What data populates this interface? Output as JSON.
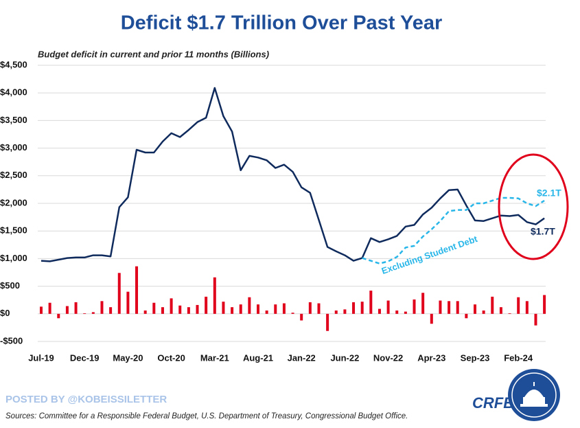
{
  "chart_data": {
    "type": "line",
    "title": "Deficit $1.7 Trillion Over Past Year",
    "subtitle": "Budget deficit in current and prior 11 months (Billions)",
    "categories": [
      "Jul-19",
      null,
      null,
      null,
      null,
      "Dec-19",
      null,
      null,
      null,
      null,
      "May-20",
      null,
      null,
      null,
      null,
      "Oct-20",
      null,
      null,
      null,
      null,
      "Mar-21",
      null,
      null,
      null,
      null,
      "Aug-21",
      null,
      null,
      null,
      null,
      "Jan-22",
      null,
      null,
      null,
      null,
      "Jun-22",
      null,
      null,
      null,
      null,
      "Nov-22",
      null,
      null,
      null,
      null,
      "Apr-23",
      null,
      null,
      null,
      null,
      "Sep-23",
      null,
      null,
      null,
      null,
      "Feb-24",
      null,
      null,
      null
    ],
    "series": [
      {
        "type": "bar",
        "color": "#e0001b",
        "values": [
          130,
          200,
          -80,
          140,
          210,
          10,
          30,
          230,
          120,
          740,
          400,
          860,
          60,
          200,
          120,
          280,
          150,
          120,
          160,
          310,
          660,
          220,
          120,
          170,
          300,
          170,
          60,
          170,
          190,
          20,
          -120,
          210,
          190,
          -310,
          60,
          80,
          210,
          220,
          420,
          90,
          240,
          60,
          40,
          260,
          380,
          -180,
          240,
          230,
          230,
          -80,
          170,
          60,
          310,
          120,
          10,
          300,
          230,
          -210,
          340
        ]
      },
      {
        "type": "line",
        "color": "#0f2a5c",
        "values": [
          960,
          950,
          980,
          1010,
          1020,
          1020,
          1060,
          1060,
          1040,
          1930,
          2110,
          2970,
          2920,
          2920,
          3120,
          3270,
          3200,
          3330,
          3470,
          3550,
          4090,
          3580,
          3300,
          2600,
          2860,
          2830,
          2780,
          2640,
          2700,
          2570,
          2290,
          2190,
          1700,
          1210,
          1130,
          1060,
          960,
          1010,
          1370,
          1300,
          1350,
          1410,
          1580,
          1610,
          1800,
          1920,
          2090,
          2240,
          2250,
          1960,
          1690,
          1680,
          1730,
          1780,
          1770,
          1790,
          1660,
          1620,
          1730
        ]
      },
      {
        "type": "line",
        "name": "Excluding Student Debt",
        "color": "#29b6e8",
        "dash": true,
        "values": [
          null,
          null,
          null,
          null,
          null,
          null,
          null,
          null,
          null,
          null,
          null,
          null,
          null,
          null,
          null,
          null,
          null,
          null,
          null,
          null,
          null,
          null,
          null,
          null,
          null,
          null,
          null,
          null,
          null,
          null,
          null,
          null,
          null,
          null,
          null,
          null,
          null,
          1010,
          960,
          910,
          950,
          1030,
          1200,
          1230,
          1400,
          1530,
          1680,
          1860,
          1880,
          1880,
          2000,
          2000,
          2050,
          2100,
          2100,
          2090,
          2000,
          1950,
          2050
        ]
      }
    ],
    "ylim": [
      -500,
      4500
    ],
    "yticks": [
      {
        "value": -500,
        "label": "-$500"
      },
      {
        "value": 0,
        "label": "$0"
      },
      {
        "value": 500,
        "label": "$500"
      },
      {
        "value": 1000,
        "label": "$1,000"
      },
      {
        "value": 1500,
        "label": "$1,500"
      },
      {
        "value": 2000,
        "label": "$2,000"
      },
      {
        "value": 2500,
        "label": "$2,500"
      },
      {
        "value": 3000,
        "label": "$3,000"
      },
      {
        "value": 3500,
        "label": "$3,500"
      },
      {
        "value": 4000,
        "label": "$4,000"
      },
      {
        "value": 4500,
        "label": "$4,500"
      }
    ],
    "grid": true,
    "annotations": [
      "$2.1T",
      "$1.7T"
    ],
    "posted_by": "POSTED BY @KOBEISSILETTER",
    "source": "Sources: Committee for a Responsible Federal Budget, U.S. Department of Treasury, Congressional Budget Office.",
    "brand": "CRFB.org"
  }
}
